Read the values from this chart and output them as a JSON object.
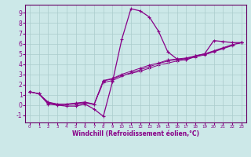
{
  "xlabel": "Windchill (Refroidissement éolien,°C)",
  "background_color": "#cce8e8",
  "grid_color": "#aacccc",
  "line_color": "#880088",
  "spine_color": "#660066",
  "xlim": [
    -0.5,
    23.5
  ],
  "ylim": [
    -1.7,
    9.8
  ],
  "xticks": [
    0,
    1,
    2,
    3,
    4,
    5,
    6,
    7,
    8,
    9,
    10,
    11,
    12,
    13,
    14,
    15,
    16,
    17,
    18,
    19,
    20,
    21,
    22,
    23
  ],
  "yticks": [
    -1,
    0,
    1,
    2,
    3,
    4,
    5,
    6,
    7,
    8,
    9
  ],
  "series": [
    [
      1.3,
      1.1,
      0.1,
      0.0,
      -0.1,
      -0.1,
      0.1,
      -0.4,
      -1.1,
      2.3,
      6.4,
      9.4,
      9.2,
      8.6,
      7.2,
      5.2,
      4.5,
      4.4,
      4.8,
      5.0,
      6.3,
      6.2,
      6.1,
      6.1
    ],
    [
      1.3,
      1.1,
      0.3,
      0.1,
      0.1,
      0.2,
      0.3,
      0.1,
      2.4,
      2.6,
      3.0,
      3.3,
      3.6,
      3.9,
      4.1,
      4.4,
      4.5,
      4.6,
      4.8,
      5.0,
      5.3,
      5.6,
      5.9,
      6.1
    ],
    [
      1.3,
      1.1,
      0.25,
      0.08,
      0.08,
      0.15,
      0.25,
      0.08,
      2.35,
      2.55,
      2.9,
      3.15,
      3.45,
      3.75,
      4.05,
      4.3,
      4.45,
      4.55,
      4.78,
      4.98,
      5.25,
      5.55,
      5.85,
      6.1
    ],
    [
      1.3,
      1.1,
      0.2,
      0.05,
      0.05,
      0.1,
      0.2,
      0.05,
      2.2,
      2.4,
      2.8,
      3.1,
      3.3,
      3.6,
      3.9,
      4.1,
      4.3,
      4.45,
      4.7,
      4.9,
      5.2,
      5.5,
      5.8,
      6.1
    ]
  ]
}
